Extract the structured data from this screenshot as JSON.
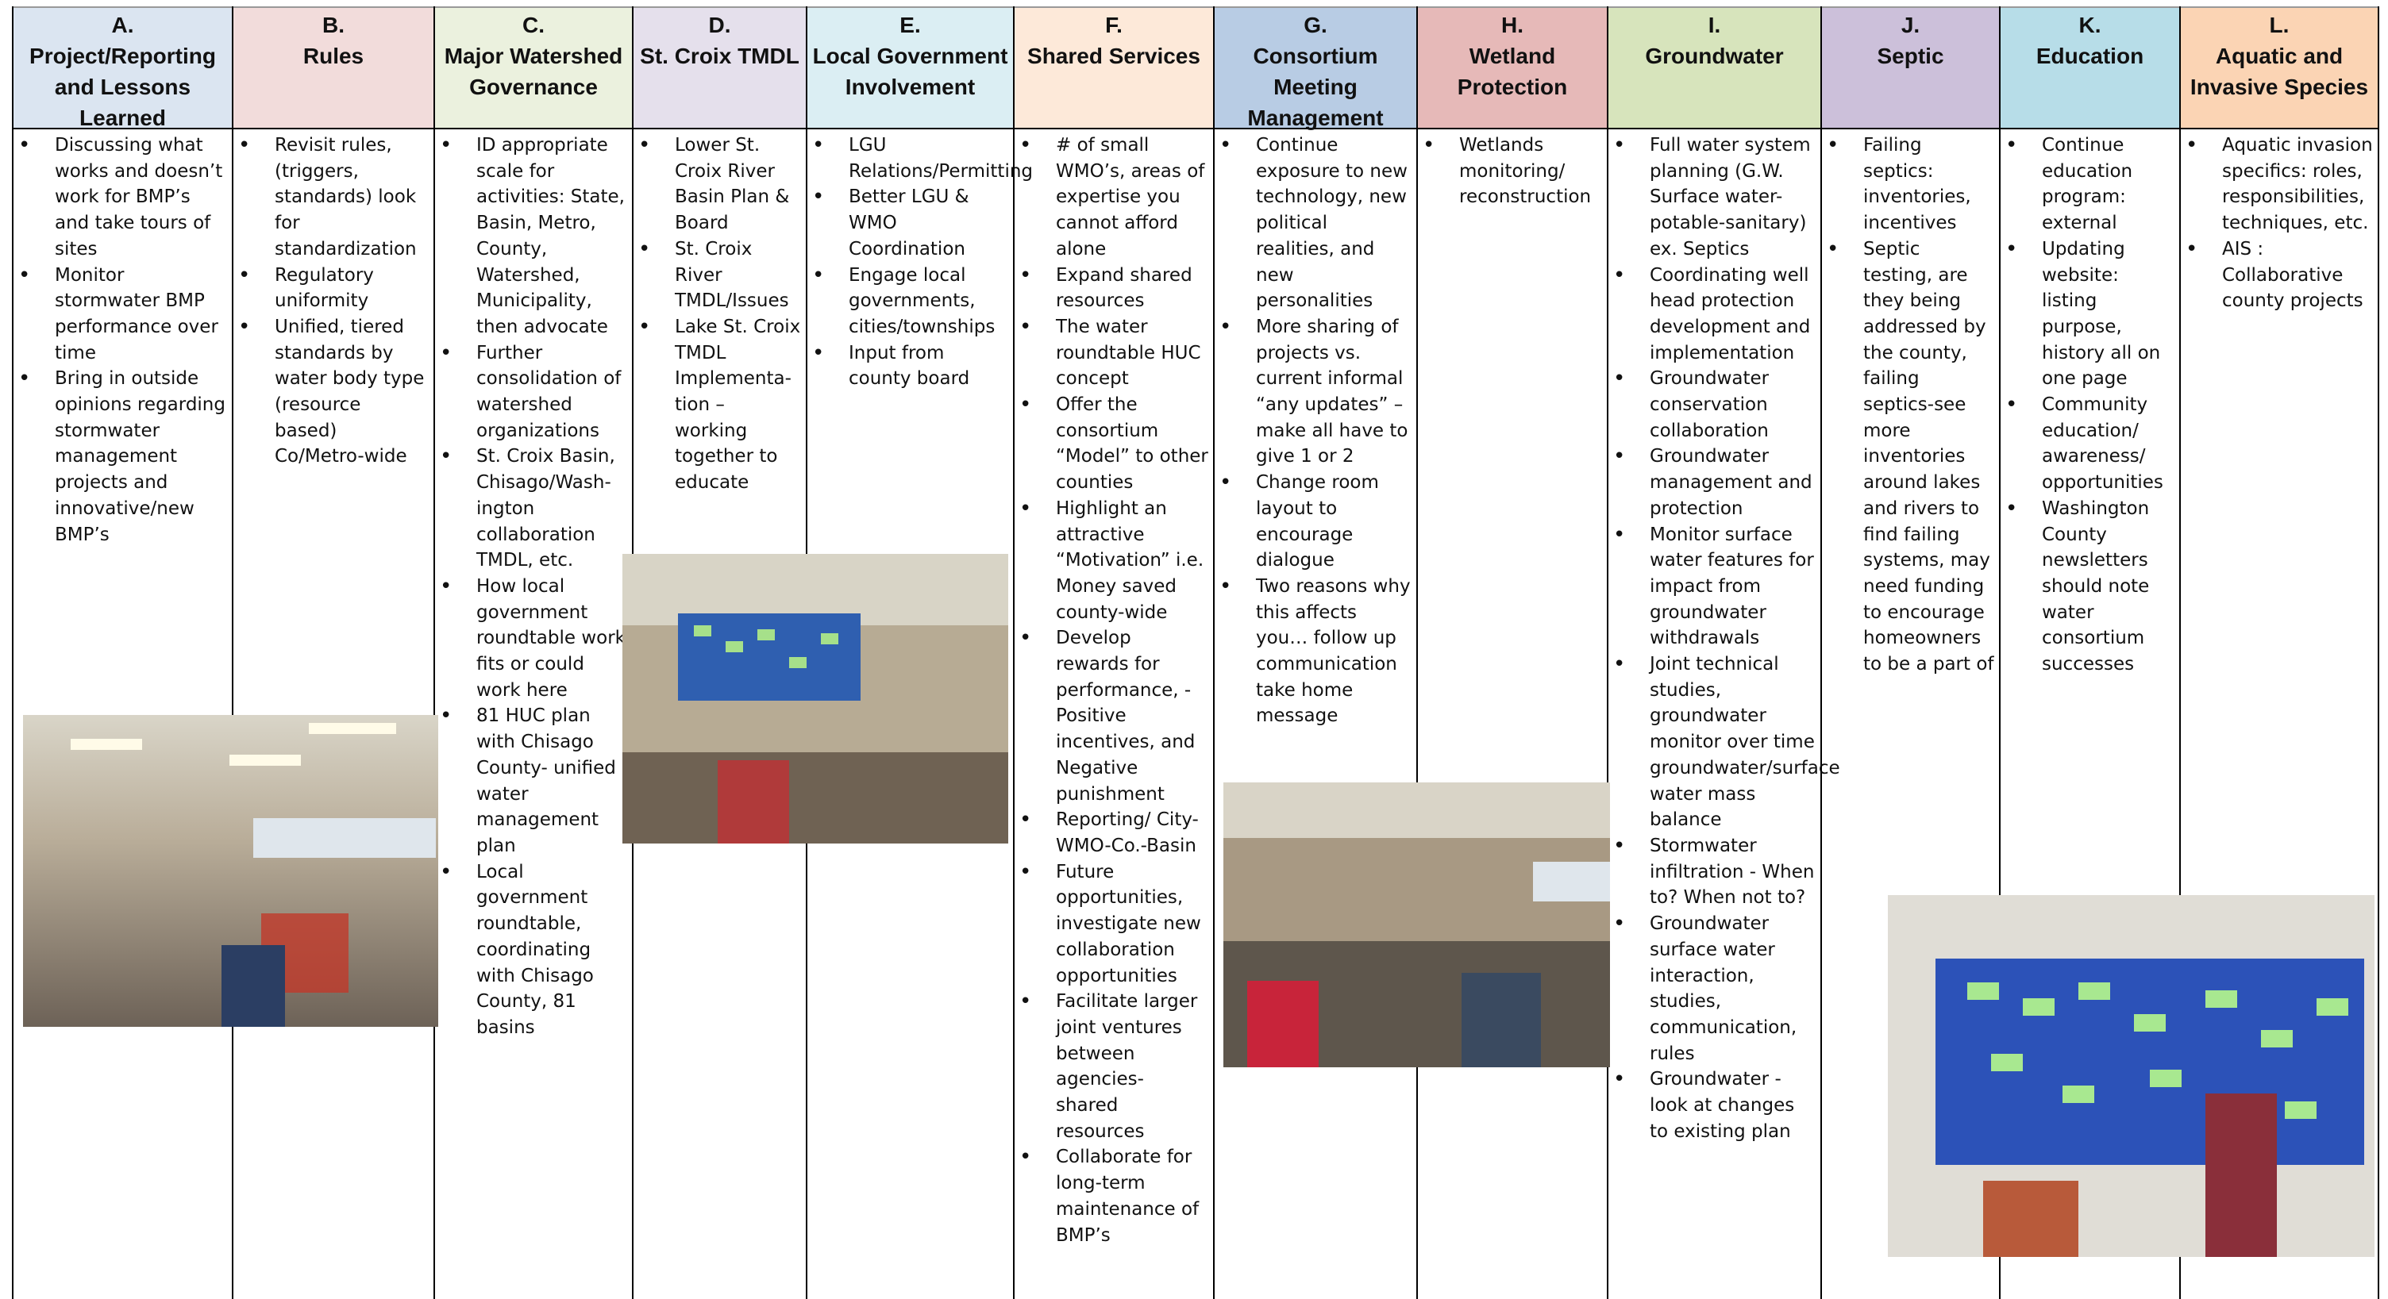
{
  "columns": [
    {
      "letter": "A.",
      "title": "Project/Reporting and Lessons Learned",
      "color": "#dbe5f1",
      "items": [
        "Discussing what works and doesn’t work for BMP’s and take tours of sites",
        "Monitor stormwater BMP performance over time",
        "Bring in outside opinions regarding stormwater management projects  and innovative/new BMP’s"
      ]
    },
    {
      "letter": "B.",
      "title": "Rules",
      "color": "#f2dcdb",
      "items": [
        "Revisit rules, (triggers, standards) look for standardization",
        "Regulatory uniformity",
        "Unified, tiered standards by water body type (resource based) Co/Metro-wide"
      ]
    },
    {
      "letter": "C.",
      "title": "Major Watershed Governance",
      "color": "#ebf1de",
      "items": [
        "ID appropriate scale for activities: State, Basin, Metro, County, Watershed, Municipality, then advocate",
        "Further consolidation of watershed organizations",
        "St. Croix Basin, Chisago/Wash-ington collaboration TMDL, etc.",
        "How local government roundtable work fits or could work here",
        "81 HUC plan with Chisago County- unified water management plan",
        "Local government roundtable, coordinating with Chisago County, 81 basins"
      ]
    },
    {
      "letter": "D.",
      "title": "St. Croix TMDL",
      "color": "#e5e0ec",
      "items": [
        "Lower St. Croix River Basin Plan & Board",
        "St. Croix River TMDL/Issues",
        "Lake St. Croix TMDL Implementa-tion – working together to educate"
      ]
    },
    {
      "letter": "E.",
      "title": "Local Government Involvement",
      "color": "#dbeef3",
      "items": [
        "LGU Relations/Permitting",
        "Better LGU & WMO Coordination",
        "Engage local governments, cities/townships",
        "Input from county board"
      ]
    },
    {
      "letter": "F.",
      "title": "Shared Services",
      "color": "#fde9d9",
      "items": [
        "# of small WMO’s, areas of expertise you cannot afford alone",
        "Expand shared resources",
        "The water roundtable HUC concept",
        "Offer the consortium “Model” to other counties",
        "Highlight an attractive “Motivation” i.e. Money saved county-wide",
        "Develop rewards for performance, - Positive incentives, and Negative punishment",
        "Reporting/ City-WMO-Co.-Basin",
        "Future opportunities, investigate new collaboration opportunities",
        "Facilitate larger joint ventures between agencies- shared resources",
        "Collaborate for long-term maintenance of BMP’s"
      ]
    },
    {
      "letter": "G.",
      "title": "Consortium Meeting Management",
      "color": "#b8cce4",
      "items": [
        "Continue exposure to new technology, new political realities, and new personalities",
        "More sharing of projects vs. current informal “any updates” – make all have to give 1 or 2",
        "Change room layout to encourage dialogue",
        "Two reasons why this affects you… follow up communication take home message"
      ]
    },
    {
      "letter": "H.",
      "title": "Wetland Protection",
      "color": "#e6b9b8",
      "items": [
        "Wetlands monitoring/ reconstruction"
      ]
    },
    {
      "letter": "I.",
      "title": "Groundwater",
      "color": "#d7e4bc",
      "items": [
        "Full water system planning (G.W. Surface water-potable-sanitary) ex. Septics",
        "Coordinating well head protection development and implementation",
        "Groundwater conservation collaboration",
        "Groundwater management and protection",
        "Monitor surface water features for impact from groundwater withdrawals",
        "Joint technical studies, groundwater monitor over time groundwater/surface water mass balance",
        "Stormwater infiltration - When to? When not to?",
        "Groundwater surface water interaction, studies, communication, rules",
        "Groundwater - look at changes to existing plan"
      ]
    },
    {
      "letter": "J.",
      "title": "Septic",
      "color": "#ccc0da",
      "items": [
        "Failing septics: inventories, incentives",
        "Septic testing, are they being addressed by the county, failing septics-see more inventories around lakes and rivers to find failing systems, may need funding to encourage homeowners to be a part of"
      ]
    },
    {
      "letter": "K.",
      "title": "Education",
      "color": "#b7dde8",
      "items": [
        "Continue education program: external",
        "Updating website: listing purpose, history all on one page",
        "Community education/ awareness/ opportunities",
        "Washington County newsletters should note water consortium successes"
      ]
    },
    {
      "letter": "L.",
      "title": "Aquatic and Invasive Species",
      "color": "#fbd4b4",
      "items": [
        "Aquatic invasion specifics: roles, responsibilities, techniques, etc.",
        "AIS : Collaborative county projects"
      ]
    }
  ]
}
